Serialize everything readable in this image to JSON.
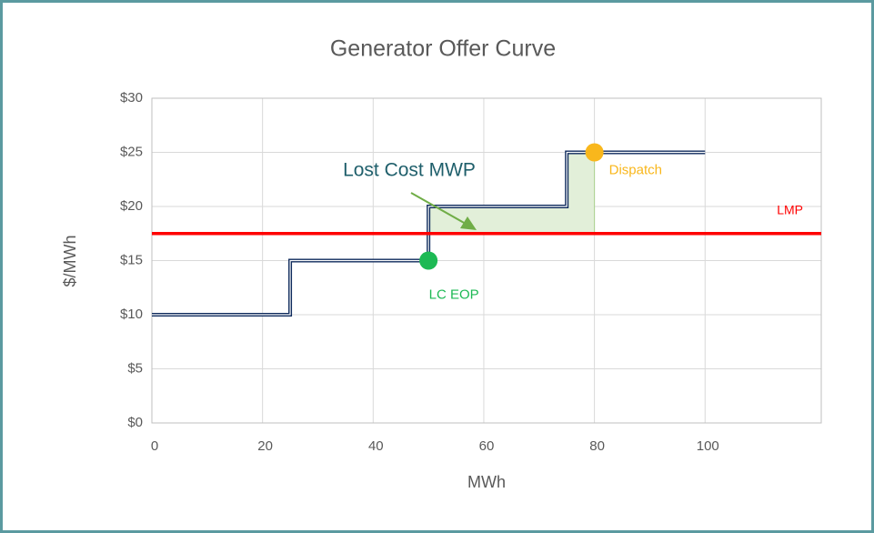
{
  "chart_data": {
    "type": "step-line",
    "title": "Generator Offer Curve",
    "x_label": "MWh",
    "y_label": "$/MWh",
    "xlim": [
      0,
      121
    ],
    "ylim": [
      0,
      30
    ],
    "xticks": [
      0,
      20,
      40,
      60,
      80,
      100
    ],
    "yticks": [
      {
        "value": 0,
        "label": "$0"
      },
      {
        "value": 5,
        "label": "$5"
      },
      {
        "value": 10,
        "label": "$10"
      },
      {
        "value": 15,
        "label": "$15"
      },
      {
        "value": 20,
        "label": "$20"
      },
      {
        "value": 25,
        "label": "$25"
      },
      {
        "value": 30,
        "label": "$30"
      }
    ],
    "grid": true,
    "series": [
      {
        "name": "Offer Curve",
        "color": "#0e2a5c",
        "x": [
          0,
          25,
          25,
          50,
          50,
          75,
          75,
          100
        ],
        "values": [
          10,
          10,
          15,
          15,
          20,
          20,
          25,
          25
        ]
      },
      {
        "name": "LMP",
        "color": "#ff0000",
        "x": [
          0,
          121
        ],
        "values": [
          17.5,
          17.5
        ]
      }
    ],
    "points": [
      {
        "name": "LC EOP",
        "color": "#1db954",
        "x": 50,
        "value": 15
      },
      {
        "name": "Dispatch",
        "color": "#f9b71c",
        "x": 80,
        "value": 25
      }
    ],
    "shaded_area": {
      "color": "#e2efd9",
      "x": [
        50,
        75,
        75,
        80
      ],
      "values": [
        20,
        20,
        25,
        25
      ],
      "base": 17.5
    },
    "annotation": {
      "text": "Lost Cost MWP",
      "color": "#1f5f6b"
    }
  }
}
